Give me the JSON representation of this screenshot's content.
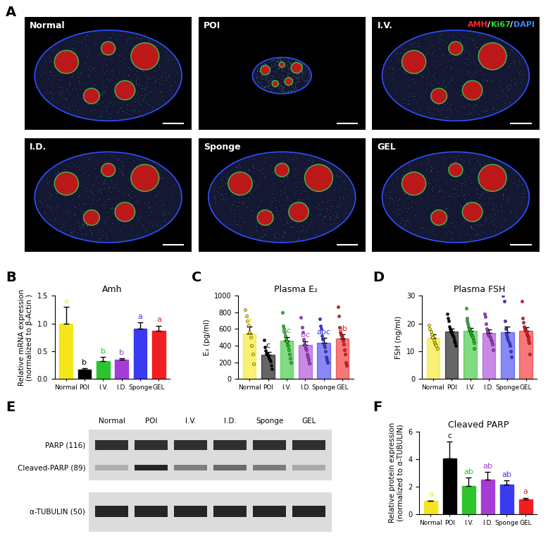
{
  "chart_data": [
    {
      "type": "bar",
      "panel": "B",
      "title": "Amh",
      "ylabel": "Relative mRNA expression\n(normalized to β-Actin )",
      "categories": [
        "Normal",
        "POI",
        "I.V.",
        "I.D.",
        "Sponge",
        "GEL"
      ],
      "values": [
        1.0,
        0.17,
        0.32,
        0.35,
        0.9,
        0.87
      ],
      "errors": [
        0.3,
        0.02,
        0.07,
        0.02,
        0.12,
        0.09
      ],
      "letters": [
        "a",
        "b",
        "b",
        "b",
        "a",
        "a"
      ],
      "colors": [
        "#F5E61A",
        "#000000",
        "#2DC42D",
        "#A63CD6",
        "#3A3AF0",
        "#F01E1E"
      ],
      "ylim": [
        0,
        1.5
      ],
      "yticks": [
        {
          "value": 0,
          "label": "0.0"
        },
        0.5,
        {
          "value": 1,
          "label": "1.0"
        },
        1.5
      ]
    },
    {
      "type": "bar",
      "panel": "C",
      "title": "Plasma E₂",
      "ylabel": "E₂ (pg/ml)",
      "categories": [
        "Normal",
        "POI",
        "I.V.",
        "I.D.",
        "Sponge",
        "GEL"
      ],
      "values": [
        545,
        290,
        460,
        410,
        435,
        485
      ],
      "errors": [
        85,
        35,
        45,
        45,
        55,
        50
      ],
      "letters": [
        "a",
        "c",
        "bc",
        "bc",
        "abc",
        "ab"
      ],
      "colors": [
        "#F5E61A",
        "#000000",
        "#2DC42D",
        "#A63CD6",
        "#3A3AF0",
        "#F01E1E"
      ],
      "marker": "o",
      "points": [
        [
          830,
          760,
          700,
          650,
          560,
          500,
          400,
          300,
          180
        ],
        [
          470,
          380,
          340,
          310,
          300,
          290,
          270,
          250,
          230,
          210,
          160,
          120
        ],
        [
          800,
          640,
          600,
          560,
          520,
          480,
          450,
          420,
          390,
          350,
          300,
          250,
          200
        ],
        [
          740,
          620,
          560,
          480,
          420,
          400,
          370,
          350,
          300,
          260,
          230,
          190
        ],
        [
          720,
          640,
          600,
          520,
          480,
          420,
          380,
          330,
          260,
          230,
          200
        ],
        [
          870,
          760,
          620,
          560,
          540,
          520,
          500,
          460,
          420,
          350,
          300,
          200,
          160
        ]
      ],
      "ylim": [
        0,
        1000
      ],
      "yticks": [
        0,
        200,
        400,
        600,
        800,
        1000
      ]
    },
    {
      "type": "bar",
      "panel": "D",
      "title": "Plasma FSH",
      "ylabel": "FSH (ng/ml)",
      "categories": [
        "Normal",
        "POI",
        "I.V.",
        "I.D.",
        "Sponge",
        "GEL"
      ],
      "values": [
        14.8,
        17.0,
        17.4,
        16.5,
        16.8,
        17.3
      ],
      "errors": [
        1.2,
        1.1,
        1.1,
        1.3,
        2.2,
        1.3
      ],
      "colors": [
        "#F5E61A",
        "#000000",
        "#2DC42D",
        "#A63CD6",
        "#3A3AF0",
        "#F01E1E"
      ],
      "marker": "o",
      "points": [
        [
          19.5,
          18,
          17,
          16,
          15,
          14,
          13,
          12.5,
          12,
          11
        ],
        [
          23.5,
          22,
          21,
          19,
          18,
          17.5,
          17,
          16.5,
          16,
          15.5,
          15,
          14,
          13.5,
          13,
          12
        ],
        [
          25.5,
          22,
          21,
          20,
          19,
          18,
          17.5,
          17,
          16.5,
          16,
          15.5,
          15,
          14,
          13,
          11
        ],
        [
          23.5,
          22.5,
          20,
          18,
          17,
          16,
          15.5,
          15,
          14,
          13.5,
          12.5,
          10.5
        ],
        [
          30,
          28,
          21,
          18,
          16,
          15,
          14,
          13,
          12,
          10,
          8
        ],
        [
          28,
          22,
          20.5,
          19,
          18,
          17.5,
          17,
          16,
          15.5,
          15,
          14,
          13,
          9
        ]
      ],
      "ylim": [
        0,
        30
      ],
      "yticks": [
        0,
        10,
        20,
        30
      ]
    },
    {
      "type": "bar",
      "panel": "F",
      "title": "Cleaved PARP",
      "ylabel": "Relative protein expression\n(normalized to α-TUBULIN)",
      "categories": [
        "Normal",
        "POI",
        "I.V.",
        "I.D.",
        "Sponge",
        "GEL"
      ],
      "values": [
        1.0,
        4.05,
        2.05,
        2.5,
        2.15,
        1.1
      ],
      "errors": [
        0,
        1.2,
        0.6,
        0.55,
        0.3,
        0.1
      ],
      "letters": [
        "a",
        "c",
        "ab",
        "ab",
        "ab",
        "a"
      ],
      "colors": [
        "#F5E61A",
        "#000000",
        "#2DC42D",
        "#A63CD6",
        "#3A3AF0",
        "#F01E1E"
      ],
      "ylim": [
        0,
        6
      ],
      "yticks": [
        0,
        2,
        4,
        6
      ]
    }
  ],
  "image_panels": {
    "A": {
      "panel": "A",
      "tiles": [
        "Normal",
        "POI",
        "I.V.",
        "I.D.",
        "Sponge",
        "GEL"
      ],
      "channels": [
        {
          "name": "AMH",
          "color": "#FF2A2A"
        },
        {
          "name": "Ki67",
          "color": "#33DD33"
        },
        {
          "name": "DAPI",
          "color": "#3A8CFF"
        }
      ],
      "separator": "/"
    },
    "E": {
      "panel": "E",
      "lanes": [
        "Normal",
        "POI",
        "I.V.",
        "I.D.",
        "Sponge",
        "GEL"
      ],
      "rows": [
        "PARP (116)",
        "Cleaved-PARP (89)",
        "α-TUBULIN (50)"
      ]
    }
  }
}
